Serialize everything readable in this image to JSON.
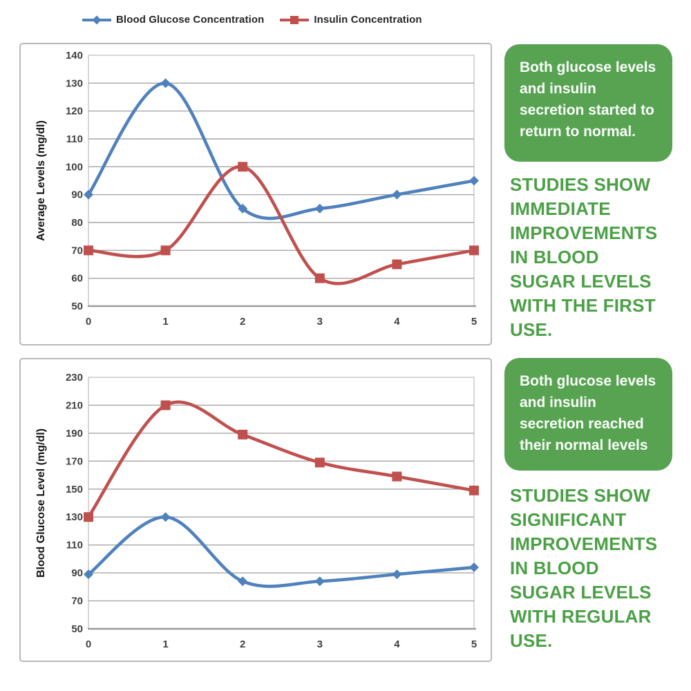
{
  "legend": {
    "items": [
      {
        "label": "Blood Glucose Concentration",
        "color": "#4f81bd",
        "marker": "diamond"
      },
      {
        "label": "Insulin Concentration",
        "color": "#c0504d",
        "marker": "square"
      }
    ]
  },
  "colors": {
    "blue_series": "#4f81bd",
    "red_series": "#c0504d",
    "green_box_bg": "#57a352",
    "green_text": "#4ba046",
    "gridline": "#a6a6a6",
    "axis_line": "#9b9b9b",
    "panel_border": "#b9b9b9"
  },
  "chart_data": [
    {
      "type": "line",
      "title": "",
      "xlabel": "",
      "ylabel": "Average Levels (mg/dl)",
      "x": [
        0,
        1,
        2,
        3,
        4,
        5
      ],
      "ylim": [
        50,
        140
      ],
      "ytick_step": 10,
      "grid": true,
      "legend_position": "top",
      "series": [
        {
          "name": "Blood Glucose Concentration",
          "color": "#4f81bd",
          "marker": "diamond",
          "values": [
            90,
            130,
            85,
            85,
            90,
            95
          ]
        },
        {
          "name": "Insulin Concentration",
          "color": "#c0504d",
          "marker": "square",
          "values": [
            70,
            70,
            100,
            60,
            65,
            70
          ]
        }
      ]
    },
    {
      "type": "line",
      "title": "",
      "xlabel": "",
      "ylabel": "Blood Glucose Level (mg/dl)",
      "x": [
        0,
        1,
        2,
        3,
        4,
        5
      ],
      "ylim": [
        50,
        230
      ],
      "ytick_step": 20,
      "grid": true,
      "legend_position": "top",
      "series": [
        {
          "name": "Blood Glucose Concentration",
          "color": "#4f81bd",
          "marker": "diamond",
          "values": [
            89,
            130,
            84,
            84,
            89,
            94
          ]
        },
        {
          "name": "Insulin Concentration",
          "color": "#c0504d",
          "marker": "square",
          "values": [
            130,
            210,
            189,
            169,
            159,
            149
          ]
        }
      ]
    }
  ],
  "annotations": {
    "top_box": "Both glucose levels\nand insulin\nsecretion started to\nreturn to normal.",
    "top_heading": "STUDIES SHOW\nIMMEDIATE\nIMPROVEMENTS\nIN BLOOD\nSUGAR LEVELS\nWITH THE FIRST\nUSE.",
    "bottom_box": "Both glucose levels\nand insulin\nsecretion reached\ntheir normal levels",
    "bottom_heading": "STUDIES SHOW\nSIGNIFICANT\nIMPROVEMENTS\nIN BLOOD\nSUGAR LEVELS\nWITH REGULAR\nUSE."
  }
}
